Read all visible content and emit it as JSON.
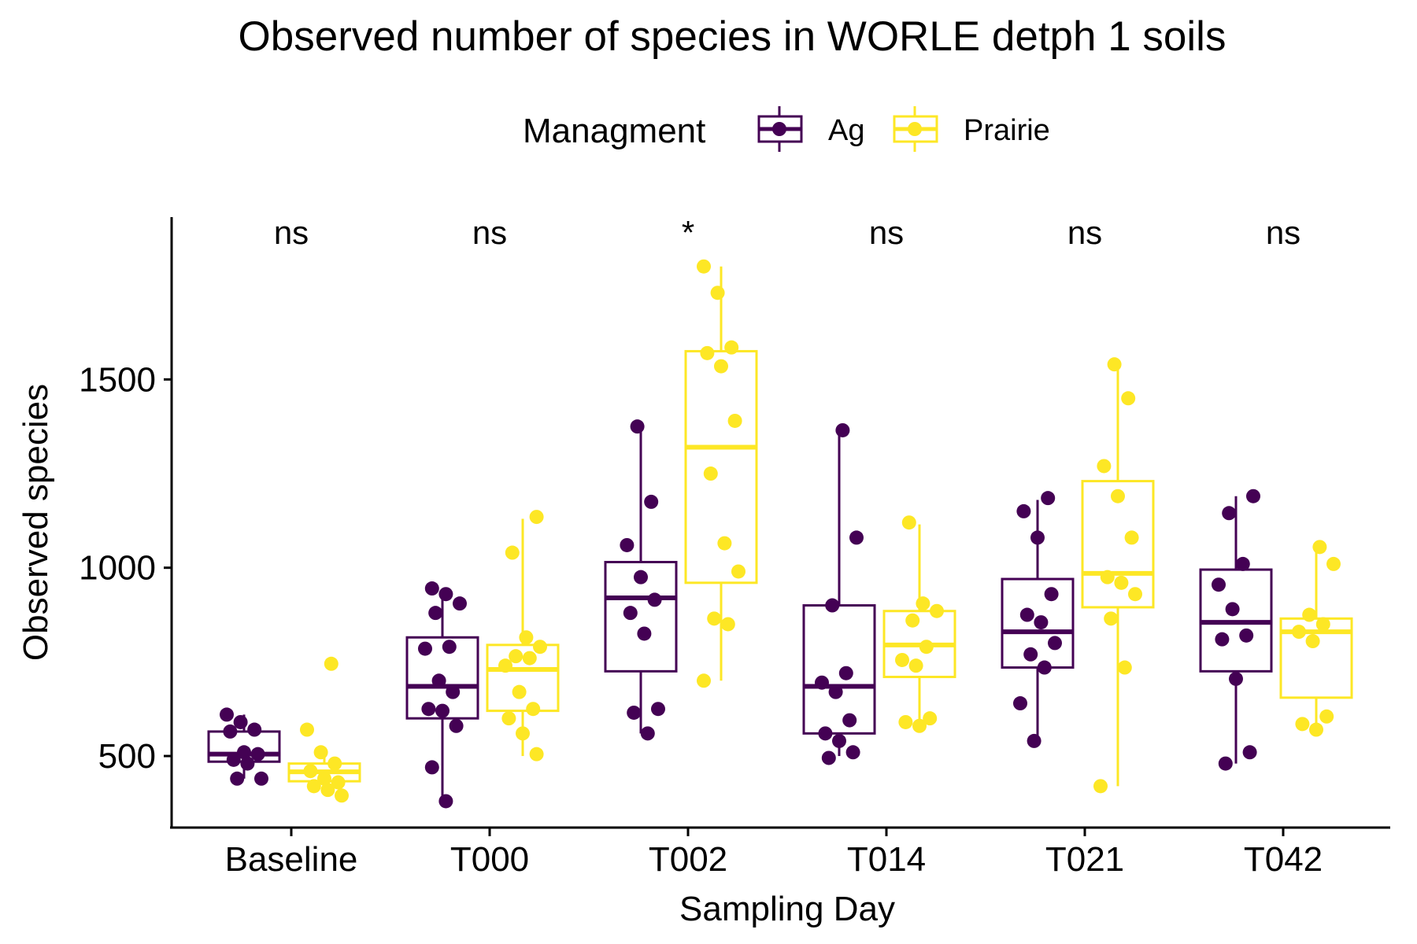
{
  "chart_data": {
    "type": "boxplot",
    "title": "Observed number of species in WORLE detph 1 soils",
    "xlabel": "Sampling Day",
    "ylabel": "Observed species",
    "ylim": [
      310,
      1860
    ],
    "yticks": [
      500,
      1000,
      1500
    ],
    "categories": [
      "Baseline",
      "T000",
      "T002",
      "T014",
      "T021",
      "T042"
    ],
    "significance": [
      "ns",
      "ns",
      "*",
      "ns",
      "ns",
      "ns"
    ],
    "legend": {
      "title": "Managment",
      "position": "top"
    },
    "grid": false,
    "series": [
      {
        "name": "Ag",
        "color": "#440154",
        "boxes": [
          {
            "min": 440,
            "q1": 485,
            "median": 505,
            "q3": 565,
            "max": 610
          },
          {
            "min": 380,
            "q1": 600,
            "median": 685,
            "q3": 815,
            "max": 940
          },
          {
            "min": 560,
            "q1": 725,
            "median": 920,
            "q3": 1015,
            "max": 1370
          },
          {
            "min": 500,
            "q1": 560,
            "median": 685,
            "q3": 900,
            "max": 1365
          },
          {
            "min": 540,
            "q1": 735,
            "median": 830,
            "q3": 970,
            "max": 1180
          },
          {
            "min": 480,
            "q1": 725,
            "median": 855,
            "q3": 995,
            "max": 1190
          }
        ],
        "points": [
          [
            610,
            590,
            570,
            565,
            510,
            505,
            490,
            480,
            440,
            440
          ],
          [
            945,
            930,
            905,
            880,
            790,
            785,
            700,
            670,
            625,
            620,
            580,
            470,
            380
          ],
          [
            1375,
            1175,
            1060,
            975,
            915,
            880,
            825,
            625,
            615,
            560
          ],
          [
            1365,
            1080,
            900,
            720,
            695,
            670,
            595,
            560,
            540,
            510,
            495
          ],
          [
            1185,
            1150,
            1080,
            930,
            875,
            855,
            800,
            770,
            735,
            640,
            540
          ],
          [
            1190,
            1145,
            1010,
            955,
            890,
            820,
            810,
            705,
            510,
            480
          ]
        ]
      },
      {
        "name": "Prairie",
        "color": "#fde725",
        "boxes": [
          {
            "min": 400,
            "q1": 433,
            "median": 458,
            "q3": 480,
            "max": 510
          },
          {
            "min": 500,
            "q1": 620,
            "median": 730,
            "q3": 795,
            "max": 1130
          },
          {
            "min": 700,
            "q1": 960,
            "median": 1320,
            "q3": 1575,
            "max": 1800
          },
          {
            "min": 580,
            "q1": 710,
            "median": 795,
            "q3": 885,
            "max": 1115
          },
          {
            "min": 420,
            "q1": 895,
            "median": 985,
            "q3": 1230,
            "max": 1540
          },
          {
            "min": 570,
            "q1": 655,
            "median": 830,
            "q3": 865,
            "max": 1055
          }
        ],
        "points": [
          [
            745,
            570,
            510,
            480,
            460,
            440,
            430,
            420,
            410,
            395
          ],
          [
            1135,
            1040,
            815,
            790,
            765,
            760,
            740,
            670,
            625,
            600,
            560,
            505
          ],
          [
            1800,
            1730,
            1585,
            1570,
            1535,
            1390,
            1250,
            1065,
            990,
            865,
            850,
            700
          ],
          [
            1120,
            905,
            885,
            860,
            790,
            755,
            740,
            600,
            590,
            580
          ],
          [
            1540,
            1450,
            1270,
            1190,
            1080,
            975,
            960,
            930,
            865,
            735,
            420
          ],
          [
            1055,
            1010,
            875,
            850,
            830,
            805,
            605,
            585,
            570
          ]
        ]
      }
    ]
  }
}
